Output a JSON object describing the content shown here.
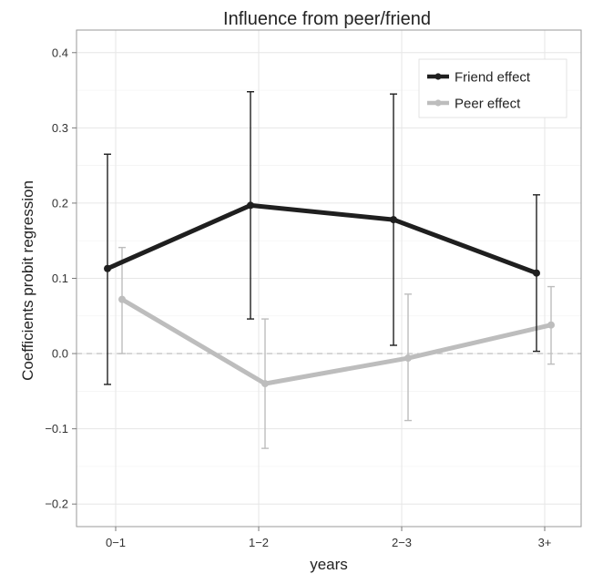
{
  "chart_data": {
    "type": "line",
    "title": "Influence from peer/friend",
    "xlabel": "years",
    "ylabel": "Coefficients  probit regression",
    "categories": [
      "0−1",
      "1−2",
      "2−3",
      "3+"
    ],
    "ylim": [
      -0.23,
      0.43
    ],
    "yticks": [
      -0.2,
      -0.1,
      0.0,
      0.1,
      0.2,
      0.3,
      0.4
    ],
    "ytick_labels": [
      "−0.2",
      "−0.1",
      "0.0",
      "0.1",
      "0.2",
      "0.3",
      "0.4"
    ],
    "grid": true,
    "legend_position": "top-right",
    "reference_line": {
      "y": 0.0,
      "style": "dashed",
      "color": "#bbbbbb"
    },
    "series": [
      {
        "name": "Friend effect",
        "color": "#1f1f1f",
        "values": [
          0.113,
          0.197,
          0.178,
          0.107
        ],
        "error_low": [
          -0.041,
          0.046,
          0.011,
          0.003
        ],
        "error_high": [
          0.265,
          0.348,
          0.345,
          0.211
        ]
      },
      {
        "name": "Peer effect",
        "color": "#bdbdbd",
        "values": [
          0.072,
          -0.04,
          -0.006,
          0.038
        ],
        "error_low": [
          0.0,
          -0.126,
          -0.089,
          -0.014
        ],
        "error_high": [
          0.141,
          0.046,
          0.079,
          0.089
        ]
      }
    ]
  }
}
